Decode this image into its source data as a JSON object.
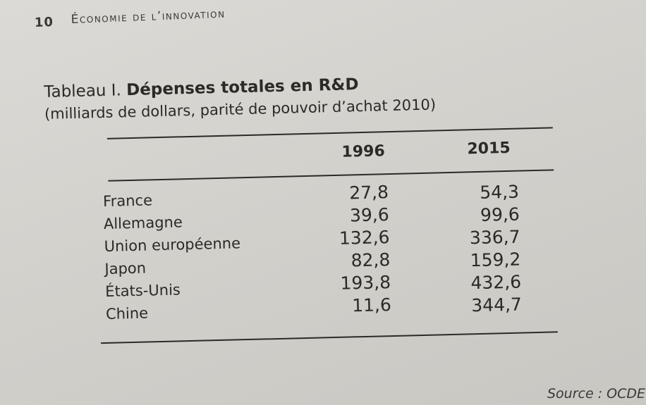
{
  "header": {
    "page_number": "10",
    "running_head": "Économie de l’innovation"
  },
  "table": {
    "title_label": "Tableau I.",
    "title_main": "Dépenses totales en R&D",
    "subtitle": "(milliards de dollars, parité de pouvoir d’achat 2010)",
    "columns": [
      "1996",
      "2015"
    ],
    "rows": [
      {
        "label": "France",
        "v1996": "27,8",
        "v2015": "54,3"
      },
      {
        "label": "Allemagne",
        "v1996": "39,6",
        "v2015": "99,6"
      },
      {
        "label": "Union européenne",
        "v1996": "132,6",
        "v2015": "336,7"
      },
      {
        "label": "Japon",
        "v1996": "82,8",
        "v2015": "159,2"
      },
      {
        "label": "États-Unis",
        "v1996": "193,8",
        "v2015": "432,6"
      },
      {
        "label": "Chine",
        "v1996": "11,6",
        "v2015": "344,7"
      }
    ]
  },
  "source": "Source : OCDE."
}
